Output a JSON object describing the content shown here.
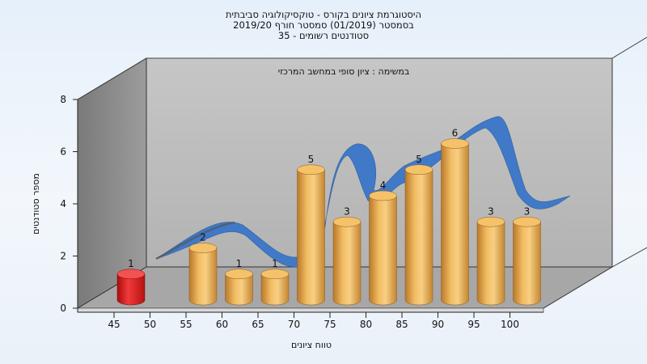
{
  "chart_data": {
    "type": "bar",
    "title": [
      "היסטוגרמת ציונים בקורס - טוקסיקולוגיה סביבתית",
      "בסמסטר (01/2019) סמסטר חורף 2019/20",
      "סטודנטים רשומים - 35"
    ],
    "subtitle": "במשימה : ציון סופי במחשב המרכזי",
    "xlabel": "טווח ציונים",
    "ylabel": "מספר סטודנטים",
    "x_ticks": [
      "45",
      "50",
      "55",
      "60",
      "65",
      "70",
      "75",
      "80",
      "85",
      "90",
      "95",
      "100"
    ],
    "ylim": [
      0,
      8
    ],
    "y_ticks": [
      "0",
      "2",
      "4",
      "6",
      "8"
    ],
    "series": [
      {
        "values": [
          1,
          2,
          1,
          1,
          5,
          3,
          4,
          5,
          6,
          3,
          3
        ],
        "categories": [
          "45",
          "55",
          "60",
          "65",
          "70",
          "75",
          "80",
          "85",
          "90",
          "95",
          "100"
        ]
      }
    ],
    "curve": {
      "color": "#3a76c8"
    },
    "colors": {
      "bar": "#e7a64a",
      "bar_first": "#e31a1a",
      "back_wall": "#bdbdbd",
      "side_wall": "#8d8d8d",
      "floor": "#a9a9a9"
    },
    "grid": false,
    "style": "3d-cylinder"
  }
}
